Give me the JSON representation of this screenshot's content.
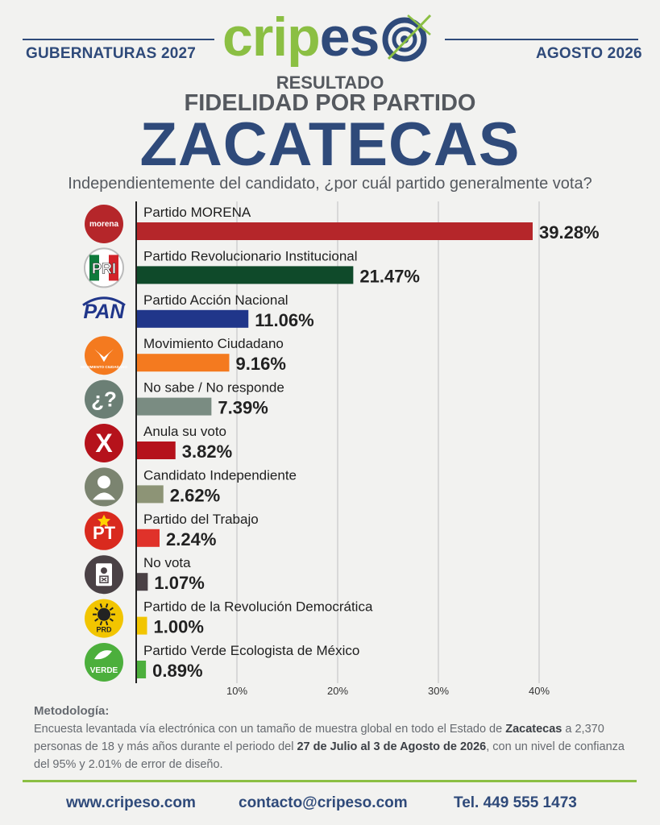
{
  "header": {
    "left": "GUBERNATURAS 2027",
    "right": "AGOSTO 2026",
    "brand_a": "crip",
    "brand_b": "es"
  },
  "titles": {
    "result": "RESULTADO",
    "subtitle": "FIDELIDAD POR PARTIDO",
    "state": "ZACATECAS",
    "question": "Independientemente del candidato, ¿por cuál partido generalmente vota?"
  },
  "chart_data": {
    "type": "bar",
    "orientation": "horizontal",
    "categories": [
      "Partido MORENA",
      "Partido Revolucionario Institucional",
      "Partido Acción Nacional",
      "Movimiento Ciudadano",
      "No sabe / No responde",
      "Anula su voto",
      "Candidato Independiente",
      "Partido del Trabajo",
      "No vota",
      "Partido de la Revolución Democrática",
      "Partido Verde Ecologista de México"
    ],
    "values": [
      39.28,
      21.47,
      11.06,
      9.16,
      7.39,
      3.82,
      2.62,
      2.24,
      1.07,
      1.0,
      0.89
    ],
    "value_labels": [
      "39.28%",
      "21.47%",
      "11.06%",
      "9.16%",
      "7.39%",
      "3.82%",
      "2.62%",
      "2.24%",
      "1.07%",
      "1.00%",
      "0.89%"
    ],
    "colors": [
      "#b5262a",
      "#0f4a2a",
      "#20368a",
      "#f47a1f",
      "#7a8c82",
      "#b5121b",
      "#8d9476",
      "#e0322a",
      "#4a4145",
      "#f2c500",
      "#4caf3c"
    ],
    "icons": [
      "morena-logo",
      "pri-logo",
      "pan-logo",
      "mc-logo",
      "question-icon",
      "cross-icon",
      "person-icon",
      "pt-logo",
      "ballot-icon",
      "prd-logo",
      "verde-logo"
    ],
    "icon_colors": [
      "#b5262a",
      "#ffffff",
      "#ffffff",
      "#f47a1f",
      "#6b7f75",
      "#b5121b",
      "#7b8470",
      "#d92a1e",
      "#4a4145",
      "#f2c500",
      "#4caf3c"
    ],
    "xticks": [
      "10%",
      "20%",
      "30%",
      "40%"
    ],
    "xtick_values": [
      10,
      20,
      30,
      40
    ],
    "xlim": [
      0,
      40
    ],
    "grid": true
  },
  "icon_text": {
    "morena": "morena",
    "pri": "PRI",
    "pan": "PAN",
    "pt": "PT",
    "prd": "PRD",
    "verde": "VERDE",
    "mc": "MOVIMIENTO CIUDADANO"
  },
  "methodology": {
    "title": "Metodología:",
    "p1": "Encuesta levantada vía electrónica con un tamaño de muestra global en todo el Estado de ",
    "b1": "Zacatecas",
    "p2": " a 2,370 personas de 18 y más años durante el periodo del ",
    "b2": "27 de Julio al 3 de Agosto de 2026",
    "p3": ", con un nivel de confianza del 95% y 2.01% de error de diseño."
  },
  "footer": {
    "website": "www.cripeso.com",
    "email": "contacto@cripeso.com",
    "phone": "Tel. 449 555 1473"
  }
}
